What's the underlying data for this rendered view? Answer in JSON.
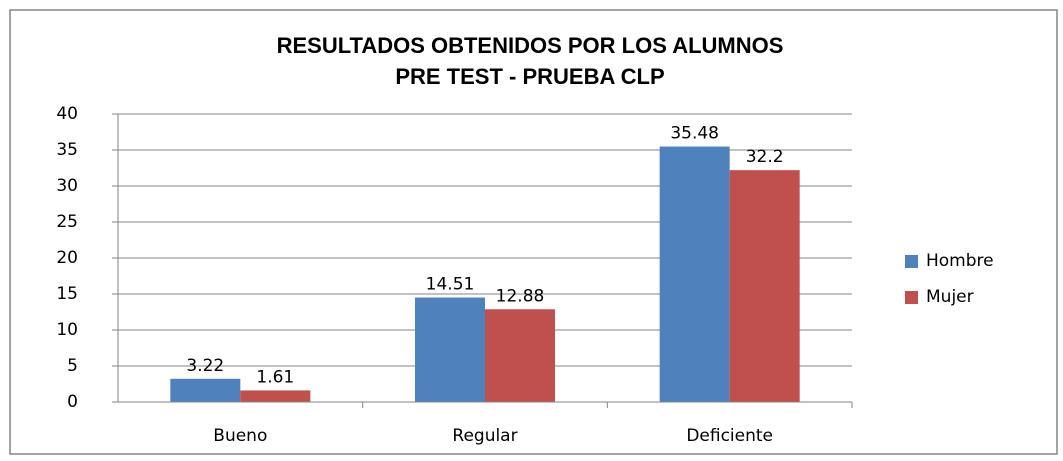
{
  "chart_data": {
    "type": "bar",
    "title": "RESULTADOS OBTENIDOS POR LOS ALUMNOS",
    "subtitle": "PRE TEST - PRUEBA CLP",
    "categories": [
      "Bueno",
      "Regular",
      "Deficiente"
    ],
    "series": [
      {
        "name": "Hombre",
        "color": "#4f81bd",
        "values": [
          3.22,
          14.51,
          35.48
        ]
      },
      {
        "name": "Mujer",
        "color": "#c0504d",
        "values": [
          1.61,
          12.88,
          32.2
        ]
      }
    ],
    "ylim": [
      0,
      40
    ],
    "yticks": [
      0,
      5,
      10,
      15,
      20,
      25,
      30,
      35,
      40
    ],
    "grid": true,
    "legend": "right",
    "data_labels": true
  }
}
